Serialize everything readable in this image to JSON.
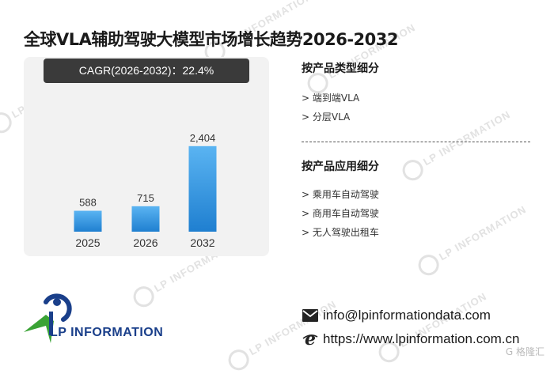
{
  "title": "全球VLA辅助驾驶大模型市场增长趋势2026-2032",
  "cagr_label": "CAGR(2026-2032)：22.4%",
  "chart_data": {
    "type": "bar",
    "categories": [
      "2025",
      "2026",
      "2032"
    ],
    "values": [
      588,
      715,
      2404
    ],
    "value_labels": [
      "588",
      "715",
      "2,404"
    ],
    "title": "",
    "xlabel": "",
    "ylabel": "",
    "ylim": [
      0,
      2600
    ],
    "grid": false,
    "bar_color_top": "#5ab4f2",
    "bar_color_bottom": "#1f7fd0"
  },
  "segments": {
    "by_type": {
      "title": "按产品类型细分",
      "items": [
        "> 端到端VLA",
        "> 分层VLA"
      ]
    },
    "by_application": {
      "title": "按产品应用细分",
      "items": [
        "> 乘用车自动驾驶",
        "> 商用车自动驾驶",
        "> 无人驾驶出租车"
      ]
    }
  },
  "logo_text": "LP INFORMATION",
  "contact": {
    "email": "info@lpinformationdata.com",
    "website": "https://www.lpinformation.com.cn"
  },
  "watermark_text": "LP INFORMATION",
  "footer_brand": "G 格隆汇",
  "colors": {
    "logo_blue": "#1a3f8a",
    "logo_green": "#3aa335",
    "panel_bg": "#f2f2f2"
  }
}
